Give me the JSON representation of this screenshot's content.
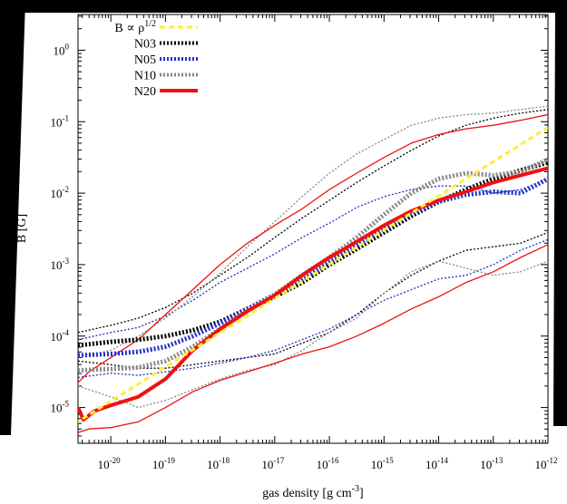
{
  "chart_data": {
    "type": "line",
    "title": "",
    "xlabel": "gas density [g cm",
    "xlabel_sup": "-3",
    "xlabel_close": "]",
    "ylabel": "B [G]",
    "x_log": true,
    "y_log": true,
    "xlim_exp": [
      -20.6,
      -12
    ],
    "ylim_exp": [
      -5.5,
      0.5
    ],
    "x_ticks": [
      {
        "exp": -20,
        "base": "10",
        "sup": "-20"
      },
      {
        "exp": -19,
        "base": "10",
        "sup": "-19"
      },
      {
        "exp": -18,
        "base": "10",
        "sup": "-18"
      },
      {
        "exp": -17,
        "base": "10",
        "sup": "-17"
      },
      {
        "exp": -16,
        "base": "10",
        "sup": "-16"
      },
      {
        "exp": -15,
        "base": "10",
        "sup": "-15"
      },
      {
        "exp": -14,
        "base": "10",
        "sup": "-14"
      },
      {
        "exp": -13,
        "base": "10",
        "sup": "-13"
      },
      {
        "exp": -12,
        "base": "10",
        "sup": "-12"
      }
    ],
    "y_ticks": [
      {
        "exp": 0,
        "base": "10",
        "sup": "0"
      },
      {
        "exp": -1,
        "base": "10",
        "sup": "-1"
      },
      {
        "exp": -2,
        "base": "10",
        "sup": "-2"
      },
      {
        "exp": -3,
        "base": "10",
        "sup": "-3"
      },
      {
        "exp": -4,
        "base": "10",
        "sup": "-4"
      },
      {
        "exp": -5,
        "base": "10",
        "sup": "-5"
      }
    ],
    "legend_position": "top-left",
    "legend": [
      {
        "label": "B ∝ ρ",
        "sup": "1/2",
        "color": "#ffee33",
        "style": "dash",
        "width": 3
      },
      {
        "label": "N03",
        "sup": "",
        "color": "#000000",
        "style": "dot",
        "width": 4
      },
      {
        "label": "N05",
        "sup": "",
        "color": "#1f2fc8",
        "style": "dot",
        "width": 4
      },
      {
        "label": "N10",
        "sup": "",
        "color": "#888888",
        "style": "dot",
        "width": 4
      },
      {
        "label": "N20",
        "sup": "",
        "color": "#ee1111",
        "style": "solid",
        "width": 4
      }
    ],
    "series": [
      {
        "name": "B ∝ ρ",
        "name_sup": "1/2",
        "color": "#ffee33",
        "style": "dash",
        "width": 3,
        "x_exp": [
          -21.5,
          -12
        ],
        "y_exp": [
          -5.63,
          -1.08
        ]
      },
      {
        "name": "N03",
        "color": "#000000",
        "style": "dot",
        "width": 5,
        "x_exp": [
          -20.6,
          -20,
          -19.5,
          -19,
          -18.5,
          -18,
          -17.5,
          -17,
          -16.5,
          -16,
          -15.5,
          -15,
          -14.5,
          -14,
          -13.5,
          -13,
          -12.5,
          -12
        ],
        "y_exp": [
          -4.13,
          -4.08,
          -4.05,
          -4.0,
          -3.92,
          -3.8,
          -3.62,
          -3.45,
          -3.25,
          -3.0,
          -2.78,
          -2.55,
          -2.32,
          -2.12,
          -1.95,
          -1.8,
          -1.68,
          -1.57
        ]
      },
      {
        "name": "N03",
        "color": "#000000",
        "style": "dot",
        "width": 1.3,
        "x_exp": [
          -20.6,
          -20,
          -19.5,
          -19,
          -18.5,
          -18,
          -17.5,
          -17,
          -16.5,
          -16,
          -15.5,
          -15,
          -14.5,
          -14,
          -13.5,
          -13,
          -12.5,
          -12
        ],
        "y_exp": [
          -3.95,
          -3.85,
          -3.75,
          -3.6,
          -3.4,
          -3.15,
          -2.9,
          -2.62,
          -2.35,
          -2.1,
          -1.85,
          -1.62,
          -1.4,
          -1.2,
          -1.05,
          -0.95,
          -0.88,
          -0.83
        ]
      },
      {
        "name": "N03",
        "color": "#000000",
        "style": "dot",
        "width": 1.3,
        "x_exp": [
          -20.6,
          -20,
          -19.5,
          -19,
          -18.5,
          -18,
          -17.5,
          -17,
          -16.5,
          -16,
          -15.5,
          -15,
          -14.5,
          -14,
          -13.5,
          -13,
          -12.5,
          -12
        ],
        "y_exp": [
          -4.35,
          -4.4,
          -4.45,
          -4.45,
          -4.4,
          -4.35,
          -4.3,
          -4.25,
          -4.1,
          -3.95,
          -3.7,
          -3.4,
          -3.15,
          -2.95,
          -2.8,
          -2.75,
          -2.7,
          -2.55
        ]
      },
      {
        "name": "N05",
        "color": "#1f2fc8",
        "style": "dot",
        "width": 5,
        "x_exp": [
          -20.6,
          -20,
          -19.5,
          -19,
          -18.5,
          -18,
          -17.5,
          -17,
          -16.5,
          -16,
          -15.5,
          -15,
          -14.5,
          -14,
          -13.5,
          -13,
          -12.5,
          -12
        ],
        "y_exp": [
          -4.27,
          -4.25,
          -4.22,
          -4.15,
          -4.0,
          -3.82,
          -3.62,
          -3.42,
          -3.2,
          -2.95,
          -2.73,
          -2.5,
          -2.28,
          -2.12,
          -2.02,
          -1.98,
          -2.0,
          -1.8
        ]
      },
      {
        "name": "N05",
        "color": "#1f2fc8",
        "style": "dot",
        "width": 1.3,
        "x_exp": [
          -20.6,
          -20,
          -19.5,
          -19,
          -18.5,
          -18,
          -17.5,
          -17,
          -16.5,
          -16,
          -15.5,
          -15,
          -14.5,
          -14,
          -13.5,
          -13,
          -12.5,
          -12
        ],
        "y_exp": [
          -4.05,
          -3.95,
          -3.88,
          -3.72,
          -3.5,
          -3.25,
          -3.05,
          -2.85,
          -2.62,
          -2.42,
          -2.2,
          -2.05,
          -1.95,
          -1.9,
          -1.9,
          -2.0,
          -1.95,
          -1.8
        ]
      },
      {
        "name": "N05",
        "color": "#1f2fc8",
        "style": "dot",
        "width": 1.3,
        "x_exp": [
          -20.6,
          -20,
          -19.5,
          -19,
          -18.5,
          -18,
          -17.5,
          -17,
          -16.5,
          -16,
          -15.5,
          -15,
          -14.5,
          -14,
          -13.5,
          -13,
          -12.5,
          -12
        ],
        "y_exp": [
          -4.58,
          -4.52,
          -4.55,
          -4.5,
          -4.45,
          -4.38,
          -4.3,
          -4.2,
          -4.05,
          -3.9,
          -3.7,
          -3.5,
          -3.35,
          -3.2,
          -3.15,
          -3.0,
          -2.8,
          -2.65
        ]
      },
      {
        "name": "N10",
        "color": "#888888",
        "style": "dot",
        "width": 5,
        "x_exp": [
          -20.6,
          -20,
          -19.5,
          -19,
          -18.5,
          -18,
          -17.5,
          -17,
          -16.5,
          -16,
          -15.5,
          -15,
          -14.5,
          -14,
          -13.5,
          -13,
          -12.5,
          -12
        ],
        "y_exp": [
          -4.48,
          -4.46,
          -4.44,
          -4.35,
          -4.15,
          -3.9,
          -3.65,
          -3.42,
          -3.15,
          -2.9,
          -2.62,
          -2.3,
          -2.0,
          -1.8,
          -1.72,
          -1.75,
          -1.7,
          -1.53
        ]
      },
      {
        "name": "N10",
        "color": "#888888",
        "style": "dot",
        "width": 1.3,
        "x_exp": [
          -20.6,
          -20,
          -19.5,
          -19,
          -18.5,
          -18,
          -17.5,
          -17,
          -16.5,
          -16,
          -15.5,
          -15,
          -14.5,
          -14,
          -13.5,
          -13,
          -12.5,
          -12
        ],
        "y_exp": [
          -4.3,
          -4.2,
          -4.0,
          -3.75,
          -3.45,
          -3.12,
          -2.75,
          -2.4,
          -2.05,
          -1.72,
          -1.45,
          -1.25,
          -1.05,
          -0.95,
          -0.9,
          -0.88,
          -0.83,
          -0.78
        ]
      },
      {
        "name": "N10",
        "color": "#888888",
        "style": "dot",
        "width": 1.3,
        "x_exp": [
          -20.6,
          -20,
          -19.5,
          -19,
          -18.5,
          -18,
          -17.5,
          -17,
          -16.5,
          -16,
          -15.5,
          -15,
          -14.5,
          -14,
          -13.5,
          -13,
          -12.5,
          -12
        ],
        "y_exp": [
          -4.7,
          -4.85,
          -5.0,
          -4.9,
          -4.75,
          -4.6,
          -4.48,
          -4.4,
          -4.2,
          -3.95,
          -3.75,
          -3.4,
          -3.1,
          -2.95,
          -3.05,
          -3.15,
          -3.1,
          -2.95
        ]
      },
      {
        "name": "N20",
        "color": "#ee1111",
        "style": "solid",
        "width": 4,
        "x_exp": [
          -20.6,
          -20.5,
          -20.3,
          -20,
          -19.5,
          -19,
          -18.5,
          -18,
          -17.5,
          -17,
          -16.5,
          -16,
          -15.5,
          -15,
          -14.5,
          -14,
          -13.5,
          -13,
          -12.5,
          -12
        ],
        "y_exp": [
          -5.0,
          -5.17,
          -5.05,
          -4.97,
          -4.85,
          -4.6,
          -4.2,
          -3.9,
          -3.65,
          -3.43,
          -3.15,
          -2.9,
          -2.68,
          -2.45,
          -2.25,
          -2.1,
          -1.98,
          -1.85,
          -1.75,
          -1.65
        ]
      },
      {
        "name": "N20",
        "color": "#ee1111",
        "style": "solid",
        "width": 1.3,
        "x_exp": [
          -20.6,
          -20.4,
          -20,
          -19.5,
          -19,
          -18.5,
          -18,
          -17.5,
          -17,
          -16.5,
          -16,
          -15.5,
          -15,
          -14.5,
          -14,
          -13.5,
          -13,
          -12.5,
          -12
        ],
        "y_exp": [
          -4.65,
          -4.5,
          -4.3,
          -4.05,
          -3.7,
          -3.35,
          -3.0,
          -2.7,
          -2.45,
          -2.22,
          -1.95,
          -1.72,
          -1.5,
          -1.3,
          -1.18,
          -1.1,
          -1.05,
          -0.98,
          -0.9
        ]
      },
      {
        "name": "N20",
        "color": "#ee1111",
        "style": "solid",
        "width": 1.3,
        "x_exp": [
          -20.6,
          -20.4,
          -20,
          -19.5,
          -19,
          -18.5,
          -18,
          -17.5,
          -17,
          -16.5,
          -16,
          -15.5,
          -15,
          -14.5,
          -14,
          -13.5,
          -13,
          -12.5,
          -12
        ],
        "y_exp": [
          -5.35,
          -5.3,
          -5.28,
          -5.2,
          -5.0,
          -4.78,
          -4.62,
          -4.5,
          -4.38,
          -4.25,
          -4.15,
          -4.0,
          -3.82,
          -3.62,
          -3.45,
          -3.25,
          -3.1,
          -2.9,
          -2.72
        ]
      }
    ]
  }
}
